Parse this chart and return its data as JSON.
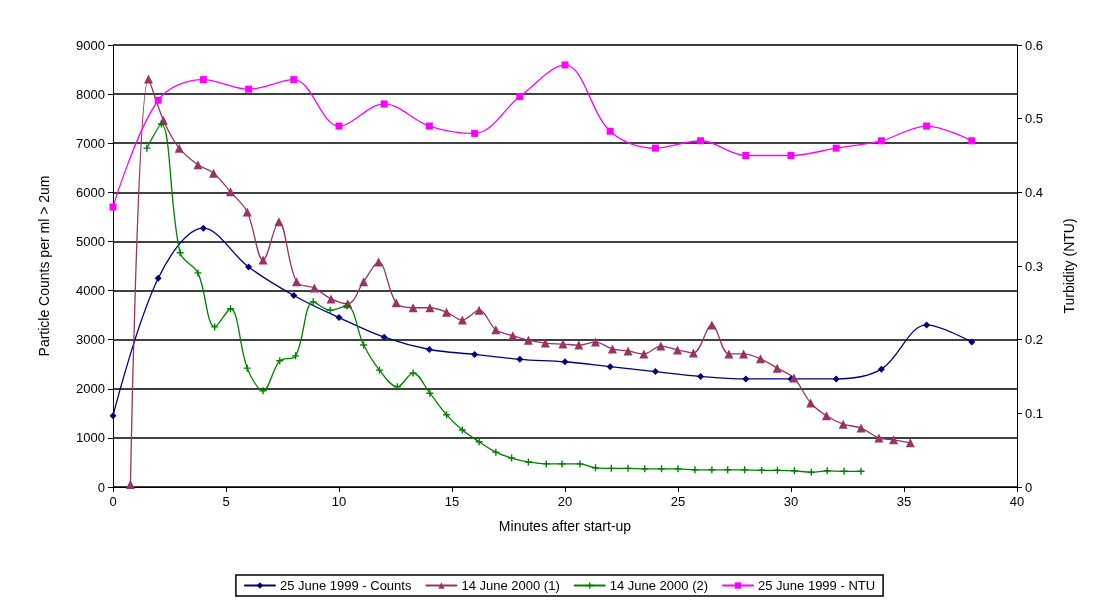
{
  "chart_data": {
    "type": "line",
    "xlabel": "Minutes after start-up",
    "ylabel": "Particle Counts per ml > 2um",
    "y2label": "Turbidity (NTU)",
    "xlim": [
      0,
      40
    ],
    "xticks": [
      0,
      5,
      10,
      15,
      20,
      25,
      30,
      35,
      40
    ],
    "ylim": [
      0,
      9000
    ],
    "yticks": [
      0,
      1000,
      2000,
      3000,
      4000,
      5000,
      6000,
      7000,
      8000,
      9000
    ],
    "y2lim": [
      0,
      0.6
    ],
    "y2ticks": [
      0,
      0.1,
      0.2,
      0.3,
      0.4,
      0.5,
      0.6
    ],
    "grid": "y",
    "legend": "bottom",
    "line_style": "solid",
    "series": [
      {
        "name": "25 June 1999 - Counts",
        "color": "#000080",
        "marker": "diamond",
        "x": [
          0,
          2,
          4,
          6,
          8,
          10,
          12,
          14,
          16,
          18,
          20,
          22,
          24,
          26,
          28,
          30,
          32,
          34,
          36,
          38
        ],
        "values": [
          1450,
          4250,
          5270,
          4480,
          3900,
          3450,
          3050,
          2800,
          2700,
          2600,
          2550,
          2450,
          2350,
          2250,
          2200,
          2200,
          2200,
          2400,
          3300,
          2950
        ]
      },
      {
        "name": "14 June 2000 (1)",
        "color": "#993366",
        "marker": "triangle",
        "x": [
          0.77,
          1.57,
          2.23,
          2.93,
          3.76,
          4.45,
          5.2,
          5.94,
          6.64,
          7.34,
          8.12,
          8.91,
          9.65,
          10.39,
          11.09,
          11.75,
          12.53,
          13.28,
          14.02,
          14.76,
          15.46,
          16.2,
          16.94,
          17.69,
          18.38,
          19.13,
          19.91,
          20.61,
          21.35,
          22.1,
          22.79,
          23.49,
          24.24,
          24.98,
          25.68,
          26.5,
          27.25,
          27.9,
          28.65,
          29.39,
          30.13,
          30.87,
          31.57,
          32.31,
          33.1,
          33.89,
          34.54,
          35.28
        ],
        "values": [
          50,
          8310,
          7470,
          6900,
          6560,
          6390,
          6010,
          5600,
          4620,
          5400,
          4180,
          4050,
          3830,
          3730,
          4180,
          4580,
          3750,
          3650,
          3650,
          3560,
          3400,
          3600,
          3200,
          3080,
          2990,
          2930,
          2910,
          2890,
          2950,
          2810,
          2770,
          2710,
          2870,
          2790,
          2730,
          3300,
          2710,
          2710,
          2610,
          2420,
          2220,
          1710,
          1450,
          1280,
          1200,
          1000,
          960,
          900
        ]
      },
      {
        "name": "14 June 2000 (2)",
        "color": "#008000",
        "marker": "cross",
        "x": [
          1.5,
          2.14,
          2.97,
          3.76,
          4.5,
          5.2,
          5.94,
          6.64,
          7.38,
          8.08,
          8.86,
          9.61,
          10.35,
          11.09,
          11.79,
          12.58,
          13.28,
          14.02,
          14.76,
          15.46,
          16.2,
          16.94,
          17.64,
          18.38,
          19.17,
          19.87,
          20.66,
          21.35,
          22.05,
          22.79,
          23.53,
          24.27,
          25.0,
          25.75,
          26.5,
          27.2,
          27.95,
          28.7,
          29.4,
          30.15,
          30.9,
          31.6,
          32.35,
          33.1
        ],
        "values": [
          6900,
          7390,
          4770,
          4360,
          3260,
          3630,
          2420,
          1960,
          2570,
          2670,
          3770,
          3600,
          3690,
          2890,
          2380,
          2040,
          2320,
          1910,
          1470,
          1160,
          920,
          710,
          590,
          510,
          470,
          470,
          470,
          390,
          380,
          380,
          370,
          370,
          370,
          350,
          350,
          350,
          350,
          340,
          340,
          330,
          300,
          330,
          320,
          320
        ]
      },
      {
        "name": "25 June 1999 - NTU",
        "color": "#ff00ff",
        "marker": "square",
        "axis": "y2",
        "x": [
          0,
          2,
          4,
          6,
          8,
          10,
          12,
          14,
          16,
          18,
          20,
          22,
          24,
          26,
          28,
          30,
          32,
          34,
          36,
          38
        ],
        "values": [
          0.38,
          0.525,
          0.553,
          0.54,
          0.553,
          0.49,
          0.52,
          0.49,
          0.48,
          0.53,
          0.573,
          0.483,
          0.46,
          0.47,
          0.45,
          0.45,
          0.46,
          0.47,
          0.49,
          0.47
        ]
      }
    ]
  }
}
